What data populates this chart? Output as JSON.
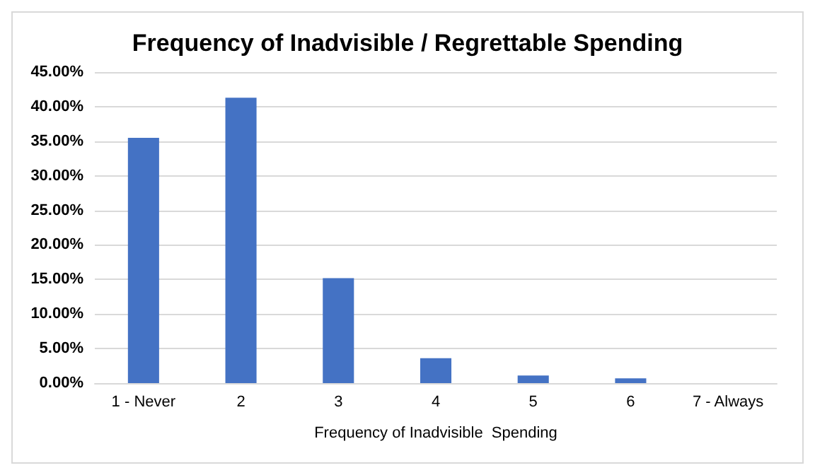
{
  "chart_data": {
    "type": "bar",
    "title": "Frequency of Inadvisible / Regrettable Spending",
    "xlabel": "Frequency of Inadvisible  Spending",
    "categories": [
      "1 - Never",
      "2",
      "3",
      "4",
      "5",
      "6",
      "7 - Always"
    ],
    "values": [
      35.5,
      41.3,
      15.2,
      3.6,
      1.1,
      0.7,
      0
    ],
    "color": "#4472c4",
    "ylim": [
      0,
      45
    ],
    "yticks": [
      {
        "value": 0,
        "label": "0.00%"
      },
      {
        "value": 5,
        "label": "5.00%"
      },
      {
        "value": 10,
        "label": "10.00%"
      },
      {
        "value": 15,
        "label": "15.00%"
      },
      {
        "value": 20,
        "label": "20.00%"
      },
      {
        "value": 25,
        "label": "25.00%"
      },
      {
        "value": 30,
        "label": "30.00%"
      },
      {
        "value": 35,
        "label": "35.00%"
      },
      {
        "value": 40,
        "label": "40.00%"
      },
      {
        "value": 45,
        "label": "45.00%"
      }
    ],
    "grid": "y"
  }
}
